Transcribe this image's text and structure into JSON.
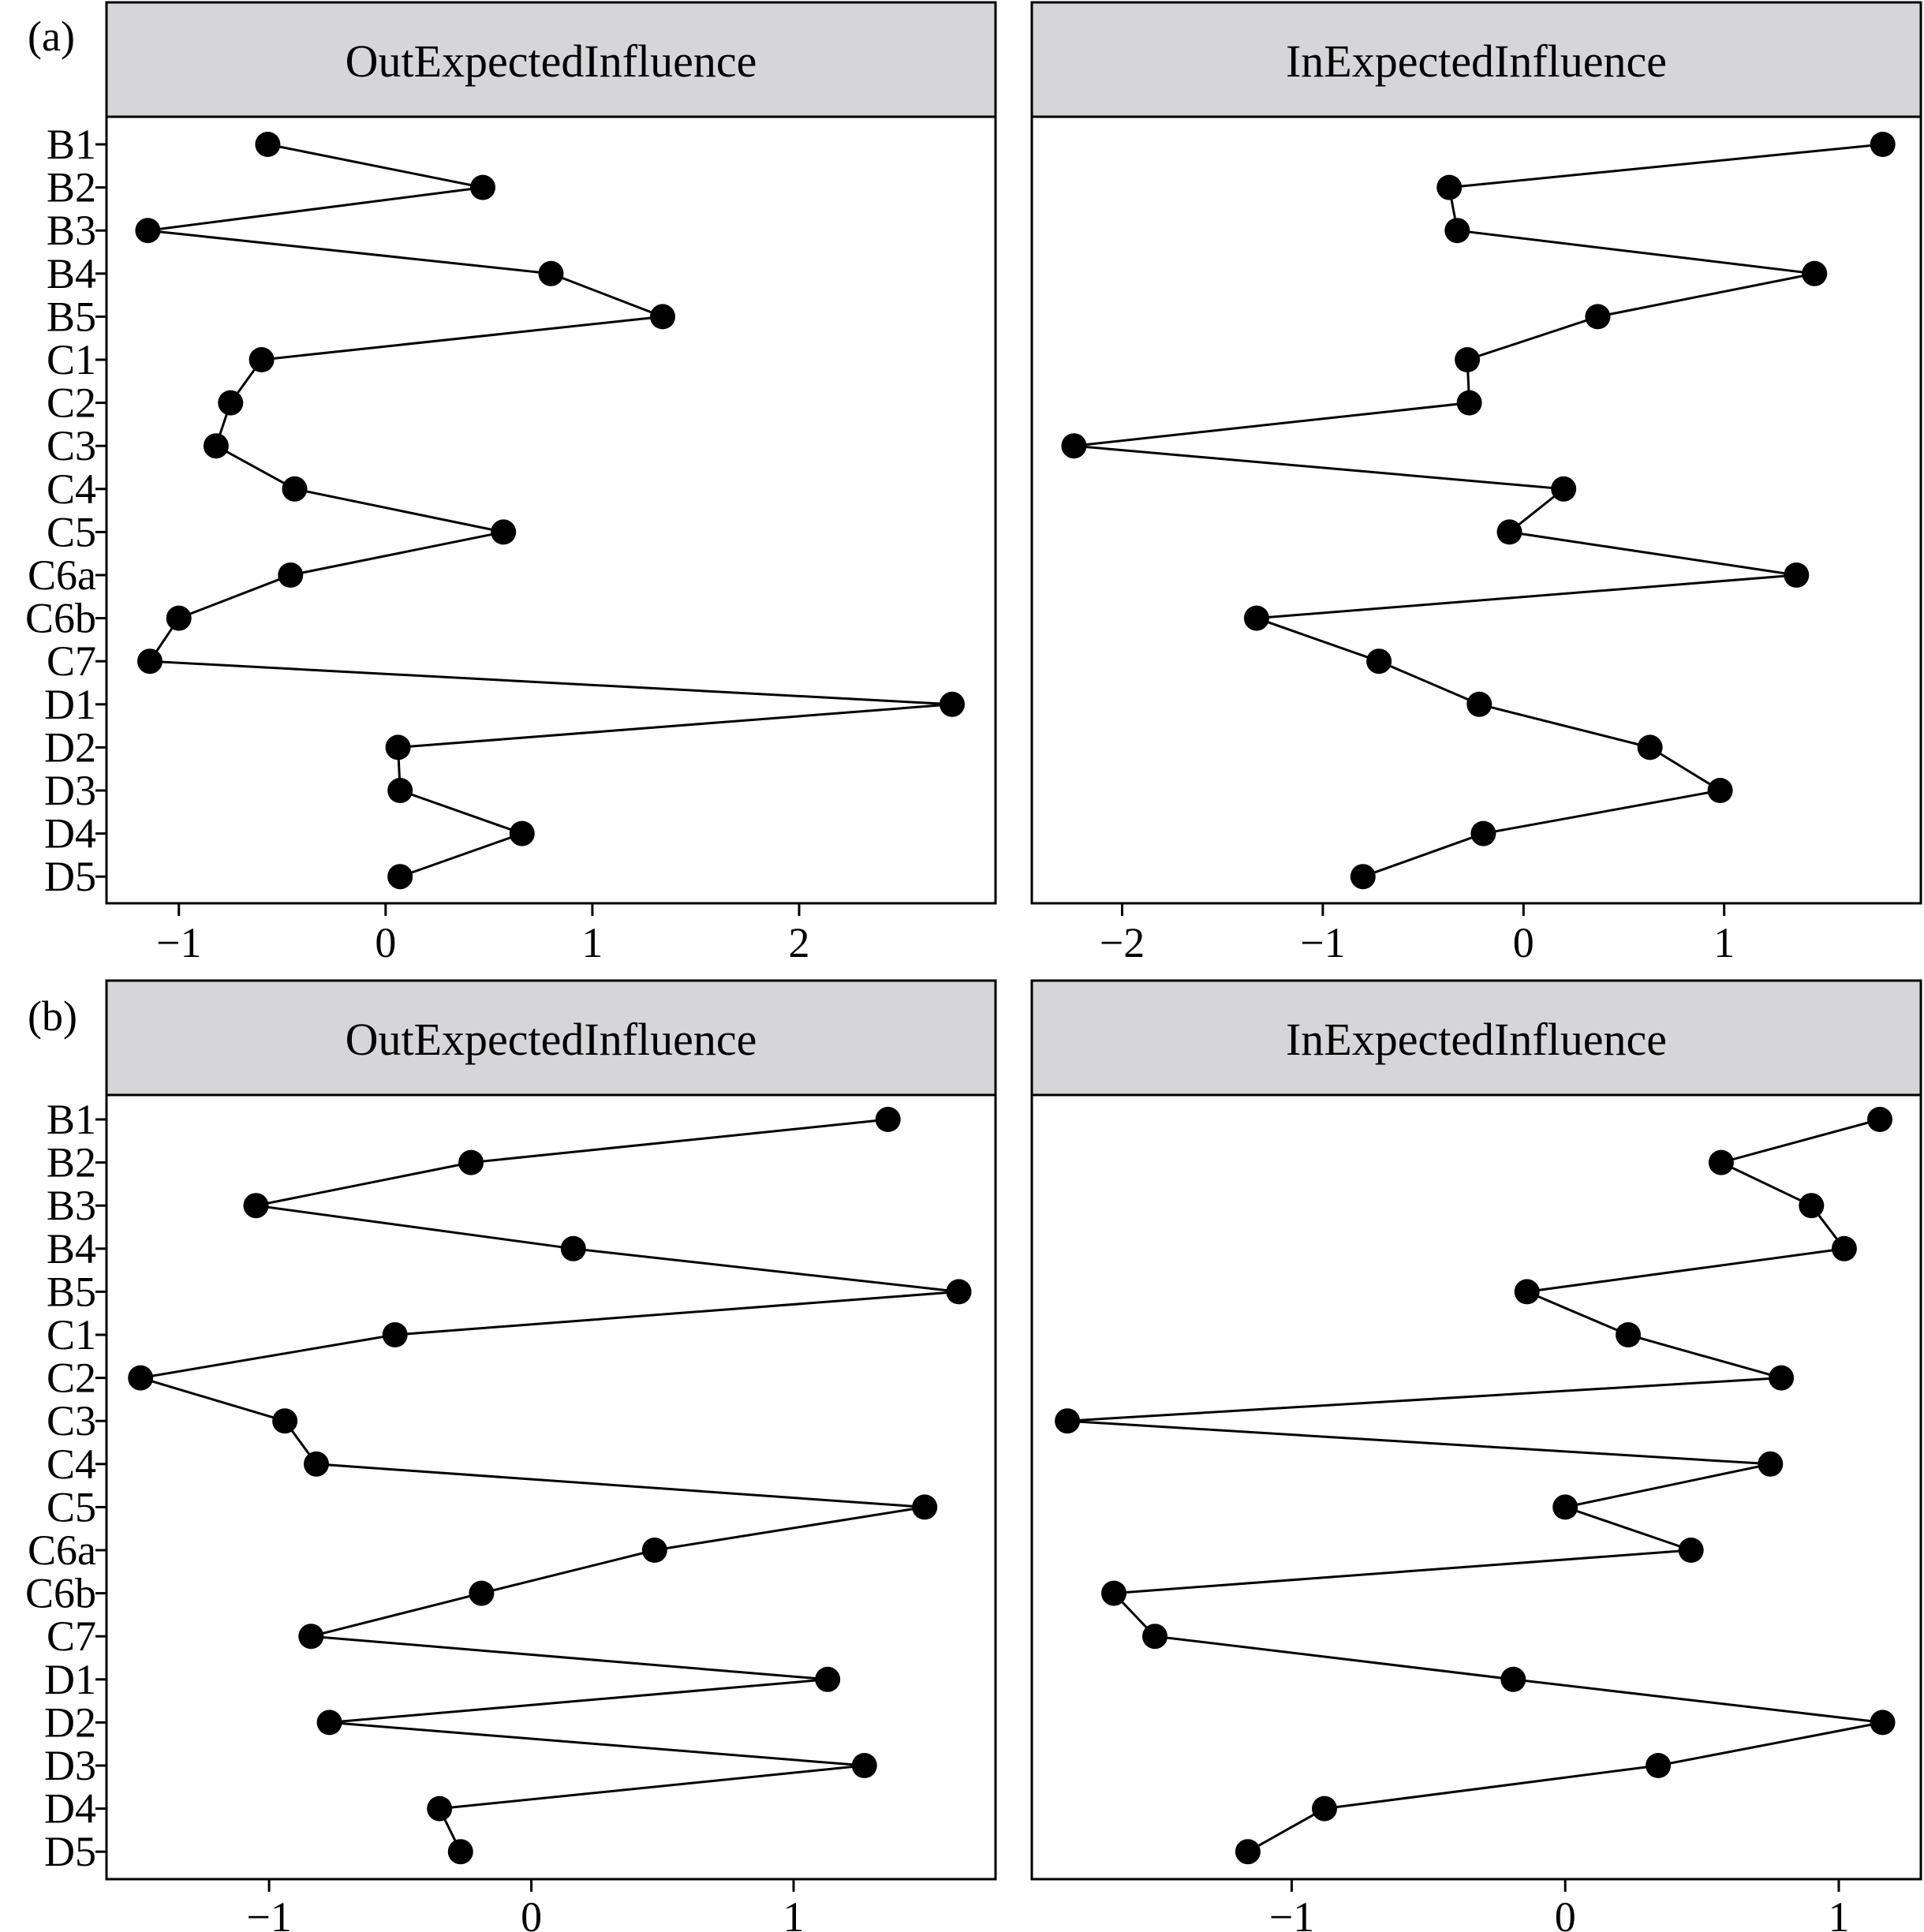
{
  "chart_data": [
    {
      "type": "line",
      "panel_label": "(a)",
      "categories": [
        "B1",
        "B2",
        "B3",
        "B4",
        "B5",
        "C1",
        "C2",
        "C3",
        "C4",
        "C5",
        "C6a",
        "C6b",
        "C7",
        "D1",
        "D2",
        "D3",
        "D4",
        "D5"
      ],
      "facets": [
        {
          "title": "OutExpectedInfluence",
          "values": [
            -0.57,
            0.47,
            -1.15,
            0.8,
            1.34,
            -0.6,
            -0.75,
            -0.82,
            -0.44,
            0.57,
            -0.46,
            -1.0,
            -1.14,
            2.74,
            0.06,
            0.07,
            0.66,
            0.07
          ],
          "xlim": [
            -1.35,
            2.95
          ],
          "xticks": [
            -1,
            0,
            1,
            2
          ],
          "xtick_labels": [
            "−1",
            "0",
            "1",
            "2"
          ]
        },
        {
          "title": "InExpectedInfluence",
          "values": [
            1.79,
            -0.37,
            -0.33,
            1.45,
            0.37,
            -0.28,
            -0.27,
            -2.24,
            0.2,
            -0.07,
            1.36,
            -1.33,
            -0.72,
            -0.22,
            0.63,
            0.98,
            -0.2,
            -0.8
          ],
          "xlim": [
            -2.45,
            1.98
          ],
          "xticks": [
            -2,
            -1,
            0,
            1
          ],
          "xtick_labels": [
            "−2",
            "−1",
            "0",
            "1"
          ]
        }
      ]
    },
    {
      "type": "line",
      "panel_label": "(b)",
      "categories": [
        "B1",
        "B2",
        "B3",
        "B4",
        "B5",
        "C1",
        "C2",
        "C3",
        "C4",
        "C5",
        "C6a",
        "C6b",
        "C7",
        "D1",
        "D2",
        "D3",
        "D4",
        "D5"
      ],
      "facets": [
        {
          "title": "OutExpectedInfluence",
          "values": [
            1.36,
            -0.23,
            -1.05,
            0.16,
            1.63,
            -0.52,
            -1.49,
            -0.94,
            -0.82,
            1.5,
            0.47,
            -0.19,
            -0.84,
            1.13,
            -0.77,
            1.27,
            -0.35,
            -0.27
          ],
          "xlim": [
            -1.62,
            1.77
          ],
          "xticks": [
            -1,
            0,
            1
          ],
          "xtick_labels": [
            "−1",
            "0",
            "1"
          ]
        },
        {
          "title": "InExpectedInfluence",
          "values": [
            1.15,
            0.57,
            0.9,
            1.02,
            -0.14,
            0.23,
            0.79,
            -1.82,
            0.75,
            0.0,
            0.46,
            -1.65,
            -1.5,
            -0.19,
            1.16,
            0.34,
            -0.88,
            -1.16
          ],
          "xlim": [
            -1.95,
            1.3
          ],
          "xticks": [
            -1,
            0,
            1
          ],
          "xtick_labels": [
            "−1",
            "0",
            "1"
          ]
        }
      ]
    }
  ]
}
